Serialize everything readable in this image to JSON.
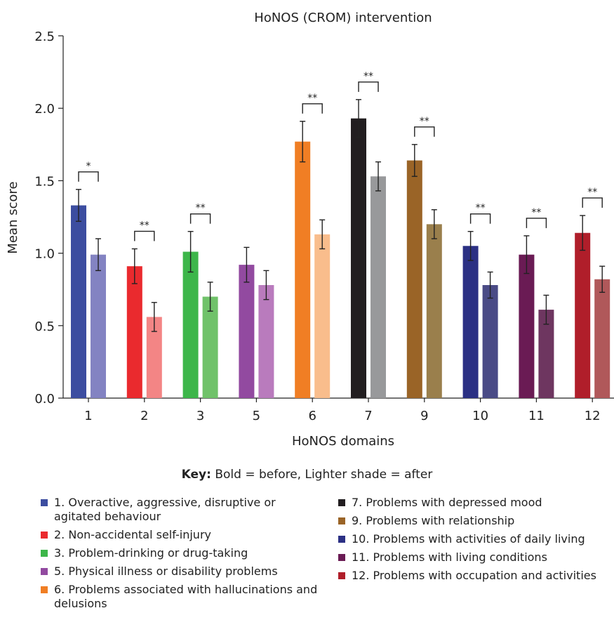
{
  "chart_data": {
    "type": "bar",
    "title": "HoNOS (CROM) intervention",
    "xlabel": "HoNOS domains",
    "ylabel": "Mean score",
    "ylim": [
      0,
      2.5
    ],
    "yticks": [
      "0.0",
      "0.5",
      "1.0",
      "1.5",
      "2.0",
      "2.5"
    ],
    "grid": false,
    "categories": [
      "1",
      "2",
      "3",
      "5",
      "6",
      "7",
      "9",
      "10",
      "11",
      "12"
    ],
    "series": [
      {
        "values": [
          1.33,
          0.91,
          1.01,
          0.92,
          1.77,
          1.93,
          1.64,
          1.05,
          0.99,
          1.14
        ],
        "errors": [
          0.11,
          0.12,
          0.14,
          0.12,
          0.14,
          0.13,
          0.11,
          0.1,
          0.13,
          0.12
        ],
        "colors": [
          "#3c4da0",
          "#ea2a2e",
          "#3db64a",
          "#924aa0",
          "#f07e24",
          "#221e20",
          "#9a6427",
          "#2b3084",
          "#6a1b54",
          "#b01e2a"
        ]
      },
      {
        "values": [
          0.99,
          0.56,
          0.7,
          0.78,
          1.13,
          1.53,
          1.2,
          0.78,
          0.61,
          0.82
        ],
        "errors": [
          0.11,
          0.1,
          0.1,
          0.1,
          0.1,
          0.1,
          0.1,
          0.09,
          0.1,
          0.09
        ],
        "colors": [
          "#8383c2",
          "#f38585",
          "#70c26a",
          "#b97bbd",
          "#f9bd8c",
          "#98999b",
          "#9a7f4c",
          "#4a4b86",
          "#6e3660",
          "#b0585a"
        ]
      }
    ],
    "significance": [
      "*",
      "**",
      "**",
      "",
      "**",
      "**",
      "**",
      "**",
      "**",
      "**"
    ]
  },
  "key": {
    "label": "Key:",
    "text": "Bold = before, Lighter shade = after"
  },
  "legend": {
    "left": [
      {
        "text": "1. Overactive, aggressive, disruptive or agitated behaviour",
        "color": "#3c4da0"
      },
      {
        "text": "2. Non-accidental self-injury",
        "color": "#ea2a2e"
      },
      {
        "text": "3. Problem-drinking or drug-taking",
        "color": "#3db64a"
      },
      {
        "text": "5. Physical illness or disability problems",
        "color": "#924aa0"
      },
      {
        "text": "6. Problems associated with hallucinations and delusions",
        "color": "#f07e24"
      }
    ],
    "right": [
      {
        "text": "7. Problems with depressed mood",
        "color": "#221e20"
      },
      {
        "text": "9. Problems with relationship",
        "color": "#9a6427"
      },
      {
        "text": "10. Problems with activities of daily living",
        "color": "#2b3084"
      },
      {
        "text": "11. Problems with living conditions",
        "color": "#6a1b54"
      },
      {
        "text": "12. Problems with occupation and activities",
        "color": "#b01e2a"
      }
    ]
  }
}
